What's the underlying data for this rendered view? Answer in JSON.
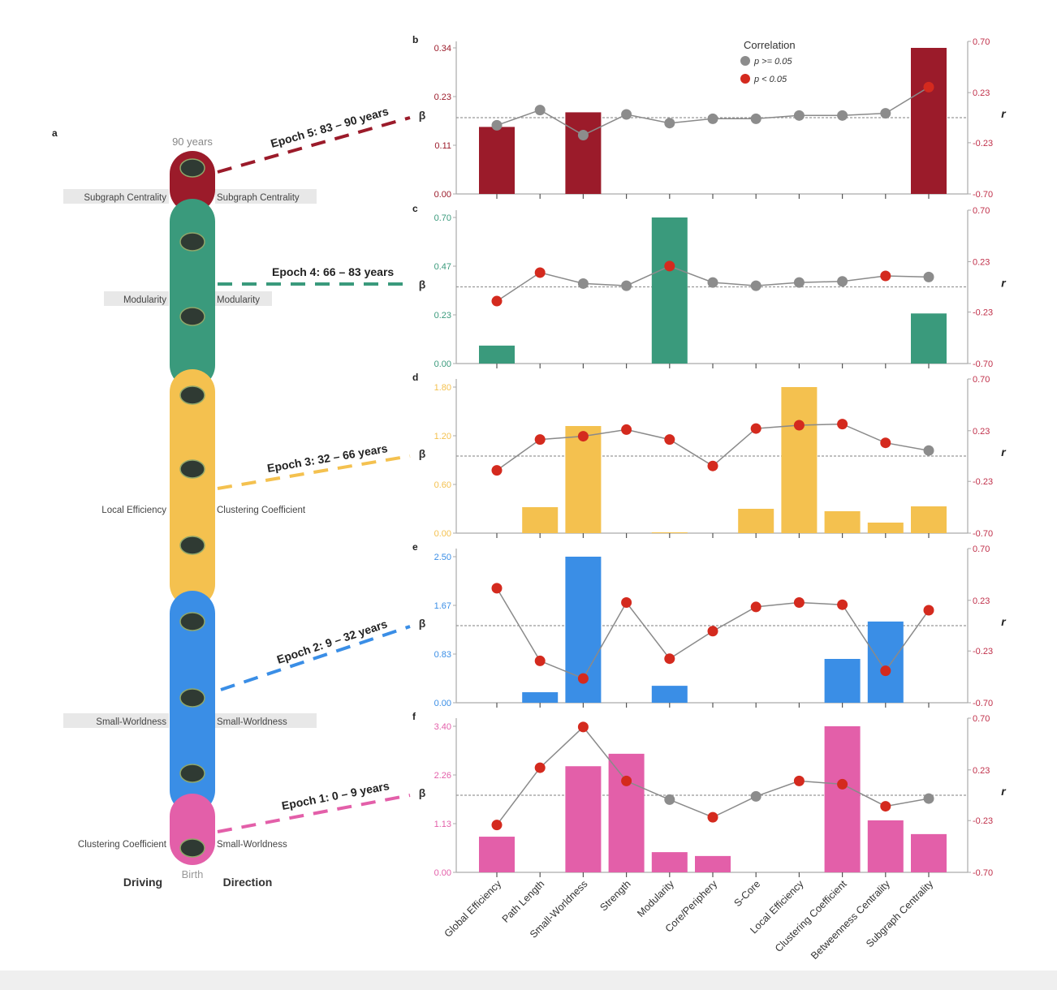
{
  "panel_a": {
    "letter": "a",
    "top_label": "90 years",
    "bottom_label": "Birth",
    "driving_label": "Driving",
    "direction_label": "Direction",
    "epochs": [
      {
        "label": "Epoch 5: 83 – 90 years",
        "color": "#9b1b2a"
      },
      {
        "label": "Epoch 4: 66 – 83 years",
        "color": "#3a9a7c"
      },
      {
        "label": "Epoch 3: 32 – 66 years",
        "color": "#f4c14f"
      },
      {
        "label": "Epoch 2: 9 – 32 years",
        "color": "#3a8ee6"
      },
      {
        "label": "Epoch 1: 0 – 9 years",
        "color": "#e35fa9"
      }
    ],
    "side_labels": [
      {
        "driving": "Subgraph Centrality",
        "direction": "Subgraph Centrality"
      },
      {
        "driving": "Modularity",
        "direction": "Modularity"
      },
      {
        "driving": "Local Efficiency",
        "direction": "Clustering Coefficient"
      },
      {
        "driving": "Small-Worldness",
        "direction": "Small-Worldness"
      },
      {
        "driving": "Clustering Coefficient",
        "direction": "Small-Worldness"
      }
    ]
  },
  "legend": {
    "title": "Correlation",
    "items": [
      {
        "label": "p >= 0.05",
        "color": "#8c8c8c"
      },
      {
        "label": "p < 0.05",
        "color": "#d42a1e"
      }
    ]
  },
  "chart_data": [
    {
      "type": "bar+line",
      "panel": "b",
      "color": "#9b1b2a",
      "categories": [
        "Global Efficiency",
        "Path Length",
        "Small-Worldness",
        "Strength",
        "Modularity",
        "Core/Periphery",
        "S-Core",
        "Local Efficiency",
        "Clustering Coefficient",
        "Betweenness Centrality",
        "Subgraph Centrality"
      ],
      "ylabel": "β",
      "y2label": "r",
      "yticks": [
        "0.00",
        "0.11",
        "0.23",
        "0.34"
      ],
      "ylim": [
        0,
        0.34
      ],
      "y2ticks": [
        "-0.70",
        "-0.23",
        "0.23",
        "0.70"
      ],
      "y2lim": [
        -0.7,
        0.7
      ],
      "beta": [
        0.156,
        0,
        0.19,
        0,
        0,
        0,
        0,
        0,
        0,
        0,
        0.34
      ],
      "r": [
        -0.07,
        0.07,
        -0.16,
        0.03,
        -0.05,
        -0.01,
        -0.01,
        0.02,
        0.02,
        0.04,
        0.28
      ],
      "significant": [
        false,
        false,
        false,
        false,
        false,
        false,
        false,
        false,
        false,
        false,
        true
      ]
    },
    {
      "type": "bar+line",
      "panel": "c",
      "color": "#3a9a7c",
      "categories": [
        "Global Efficiency",
        "Path Length",
        "Small-Worldness",
        "Strength",
        "Modularity",
        "Core/Periphery",
        "S-Core",
        "Local Efficiency",
        "Clustering Coefficient",
        "Betweenness Centrality",
        "Subgraph Centrality"
      ],
      "ylabel": "β",
      "y2label": "r",
      "yticks": [
        "0.00",
        "0.23",
        "0.47",
        "0.70"
      ],
      "ylim": [
        0,
        0.7
      ],
      "y2ticks": [
        "-0.70",
        "-0.23",
        "0.23",
        "0.70"
      ],
      "y2lim": [
        -0.7,
        0.7
      ],
      "beta": [
        0.086,
        0,
        0,
        0,
        0.7,
        0,
        0,
        0,
        0,
        0,
        0.24
      ],
      "r": [
        -0.13,
        0.13,
        0.03,
        0.01,
        0.19,
        0.04,
        0.01,
        0.04,
        0.05,
        0.1,
        0.09
      ],
      "significant": [
        true,
        true,
        false,
        false,
        true,
        false,
        false,
        false,
        false,
        true,
        false
      ]
    },
    {
      "type": "bar+line",
      "panel": "d",
      "color": "#f4c14f",
      "categories": [
        "Global Efficiency",
        "Path Length",
        "Small-Worldness",
        "Strength",
        "Modularity",
        "Core/Periphery",
        "S-Core",
        "Local Efficiency",
        "Clustering Coefficient",
        "Betweenness Centrality",
        "Subgraph Centrality"
      ],
      "ylabel": "β",
      "y2label": "r",
      "yticks": [
        "0.00",
        "0.60",
        "1.20",
        "1.80"
      ],
      "ylim": [
        0,
        1.8
      ],
      "y2ticks": [
        "-0.70",
        "-0.23",
        "0.23",
        "0.70"
      ],
      "y2lim": [
        -0.7,
        0.7
      ],
      "beta": [
        0,
        0.32,
        1.32,
        0,
        0.01,
        0,
        0.3,
        1.8,
        0.27,
        0.13,
        0.33
      ],
      "r": [
        -0.13,
        0.15,
        0.18,
        0.24,
        0.15,
        -0.09,
        0.25,
        0.28,
        0.29,
        0.12,
        0.05
      ],
      "significant": [
        true,
        true,
        true,
        true,
        true,
        true,
        true,
        true,
        true,
        true,
        false
      ]
    },
    {
      "type": "bar+line",
      "panel": "e",
      "color": "#3a8ee6",
      "categories": [
        "Global Efficiency",
        "Path Length",
        "Small-Worldness",
        "Strength",
        "Modularity",
        "Core/Periphery",
        "S-Core",
        "Local Efficiency",
        "Clustering Coefficient",
        "Betweenness Centrality",
        "Subgraph Centrality"
      ],
      "ylabel": "β",
      "y2label": "r",
      "yticks": [
        "0.00",
        "0.83",
        "1.67",
        "2.50"
      ],
      "ylim": [
        0,
        2.5
      ],
      "y2ticks": [
        "-0.70",
        "-0.23",
        "0.23",
        "0.70"
      ],
      "y2lim": [
        -0.7,
        0.7
      ],
      "beta": [
        0,
        0.18,
        2.5,
        0,
        0.29,
        0,
        0,
        0,
        0.75,
        1.39,
        0
      ],
      "r": [
        0.34,
        -0.32,
        -0.48,
        0.21,
        -0.3,
        -0.05,
        0.17,
        0.21,
        0.19,
        -0.41,
        0.14
      ],
      "significant": [
        true,
        true,
        true,
        true,
        true,
        true,
        true,
        true,
        true,
        true,
        true
      ]
    },
    {
      "type": "bar+line",
      "panel": "f",
      "color": "#e35fa9",
      "categories": [
        "Global Efficiency",
        "Path Length",
        "Small-Worldness",
        "Strength",
        "Modularity",
        "Core/Periphery",
        "S-Core",
        "Local Efficiency",
        "Clustering Coefficient",
        "Betweenness Centrality",
        "Subgraph Centrality"
      ],
      "ylabel": "β",
      "y2label": "r",
      "yticks": [
        "0.00",
        "1.13",
        "2.26",
        "3.40"
      ],
      "ylim": [
        0,
        3.4
      ],
      "y2ticks": [
        "-0.70",
        "-0.23",
        "0.23",
        "0.70"
      ],
      "y2lim": [
        -0.7,
        0.7
      ],
      "beta": [
        0.83,
        0,
        2.47,
        2.76,
        0.47,
        0.38,
        0,
        0,
        3.4,
        1.21,
        0.89
      ],
      "r": [
        -0.27,
        0.25,
        0.62,
        0.13,
        -0.04,
        -0.2,
        -0.01,
        0.13,
        0.1,
        -0.1,
        -0.03
      ],
      "significant": [
        true,
        true,
        true,
        true,
        false,
        true,
        false,
        true,
        true,
        true,
        false
      ]
    }
  ]
}
